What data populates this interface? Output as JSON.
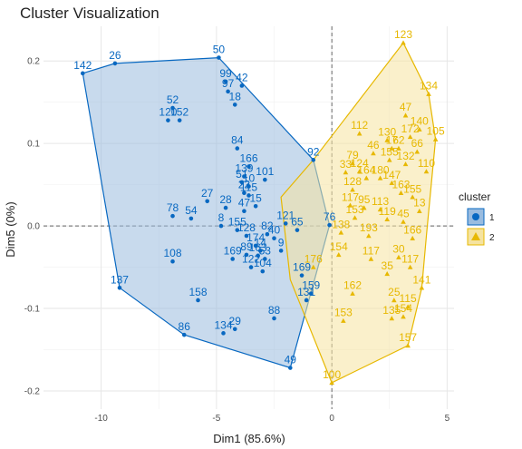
{
  "chart_data": {
    "type": "scatter",
    "title": "Cluster Visualization",
    "xlabel": "Dim1 (85.6%)",
    "ylabel": "Dim5 (0%)",
    "xlim": [
      -12.5,
      5.3
    ],
    "ylim": [
      -0.222,
      0.242
    ],
    "x_ticks": [
      -10,
      -5,
      0,
      5
    ],
    "y_ticks": [
      -0.2,
      -0.1,
      0.0,
      0.1,
      0.2
    ],
    "x_tick_labels": [
      "-10",
      "-5",
      "0",
      "5"
    ],
    "y_tick_labels": [
      "-0.2",
      "-0.1",
      "0.0",
      "0.1",
      "0.2"
    ],
    "grid": true,
    "legend_placement": "right",
    "legend": {
      "title": "cluster",
      "entries": [
        {
          "label": "1",
          "color": "#0868C1",
          "shape": "circle"
        },
        {
          "label": "2",
          "color": "#E7B800",
          "shape": "triangle"
        }
      ]
    },
    "series": [
      {
        "name": "1",
        "color": "#0868C1",
        "fill": "#9ABCDF",
        "shape": "circle",
        "hull": [
          [
            -10.8,
            0.185
          ],
          [
            -9.4,
            0.197
          ],
          [
            -4.9,
            0.204
          ],
          [
            -0.8,
            0.08
          ],
          [
            -0.1,
            0.001
          ],
          [
            -1.8,
            -0.172
          ],
          [
            -6.4,
            -0.132
          ],
          [
            -9.2,
            -0.075
          ]
        ],
        "points": [
          {
            "x": -10.8,
            "y": 0.185,
            "label": "142"
          },
          {
            "x": -9.4,
            "y": 0.197,
            "label": "26"
          },
          {
            "x": -4.9,
            "y": 0.204,
            "label": "50"
          },
          {
            "x": -6.9,
            "y": 0.143,
            "label": "52"
          },
          {
            "x": -6.6,
            "y": 0.128,
            "label": "152"
          },
          {
            "x": -7.1,
            "y": 0.128,
            "label": "120"
          },
          {
            "x": -4.6,
            "y": 0.175,
            "label": "99"
          },
          {
            "x": -3.9,
            "y": 0.17,
            "label": "42"
          },
          {
            "x": -4.5,
            "y": 0.163,
            "label": "97"
          },
          {
            "x": -4.2,
            "y": 0.147,
            "label": "18"
          },
          {
            "x": -4.1,
            "y": 0.094,
            "label": "84"
          },
          {
            "x": -0.8,
            "y": 0.08,
            "label": "92"
          },
          {
            "x": -3.6,
            "y": 0.072,
            "label": "166"
          },
          {
            "x": -3.8,
            "y": 0.06,
            "label": "139"
          },
          {
            "x": -2.9,
            "y": 0.056,
            "label": "101"
          },
          {
            "x": -3.9,
            "y": 0.053,
            "label": "51"
          },
          {
            "x": -3.6,
            "y": 0.048,
            "label": "10"
          },
          {
            "x": -3.8,
            "y": 0.04,
            "label": "22"
          },
          {
            "x": -3.6,
            "y": 0.037,
            "label": "115"
          },
          {
            "x": -5.4,
            "y": 0.03,
            "label": "27"
          },
          {
            "x": -4.6,
            "y": 0.022,
            "label": "28"
          },
          {
            "x": -3.3,
            "y": 0.024,
            "label": "15"
          },
          {
            "x": -3.8,
            "y": 0.018,
            "label": "47"
          },
          {
            "x": -6.1,
            "y": 0.009,
            "label": "54"
          },
          {
            "x": -6.9,
            "y": 0.012,
            "label": "78"
          },
          {
            "x": -4.8,
            "y": 0.0,
            "label": "8"
          },
          {
            "x": -4.1,
            "y": -0.005,
            "label": "155"
          },
          {
            "x": -3.7,
            "y": -0.012,
            "label": "128"
          },
          {
            "x": -2.8,
            "y": -0.01,
            "label": "82"
          },
          {
            "x": -2.5,
            "y": -0.015,
            "label": "40"
          },
          {
            "x": -1.5,
            "y": -0.005,
            "label": "65"
          },
          {
            "x": -3.3,
            "y": -0.024,
            "label": "174"
          },
          {
            "x": -3.1,
            "y": -0.03,
            "label": "14"
          },
          {
            "x": -2.2,
            "y": -0.03,
            "label": "9"
          },
          {
            "x": -4.3,
            "y": -0.04,
            "label": "169"
          },
          {
            "x": -3.7,
            "y": -0.035,
            "label": "89"
          },
          {
            "x": -3.2,
            "y": -0.036,
            "label": "163"
          },
          {
            "x": -2.9,
            "y": -0.04,
            "label": "53"
          },
          {
            "x": -3.5,
            "y": -0.05,
            "label": "122"
          },
          {
            "x": -3.0,
            "y": -0.055,
            "label": "104"
          },
          {
            "x": -6.9,
            "y": -0.043,
            "label": "108"
          },
          {
            "x": -9.2,
            "y": -0.075,
            "label": "137"
          },
          {
            "x": -5.8,
            "y": -0.09,
            "label": "158"
          },
          {
            "x": -6.4,
            "y": -0.132,
            "label": "86"
          },
          {
            "x": -4.7,
            "y": -0.13,
            "label": "134"
          },
          {
            "x": -4.2,
            "y": -0.125,
            "label": "29"
          },
          {
            "x": -2.5,
            "y": -0.112,
            "label": "88"
          },
          {
            "x": -1.8,
            "y": -0.172,
            "label": "49"
          },
          {
            "x": -1.3,
            "y": -0.06,
            "label": "169"
          },
          {
            "x": -1.1,
            "y": -0.09,
            "label": "131"
          },
          {
            "x": -0.1,
            "y": 0.001,
            "label": "76"
          },
          {
            "x": -0.9,
            "y": -0.082,
            "label": "159"
          },
          {
            "x": -2.0,
            "y": 0.003,
            "label": "121"
          }
        ]
      },
      {
        "name": "2",
        "color": "#E7B800",
        "fill": "#F5E3A1",
        "shape": "triangle",
        "hull": [
          [
            3.1,
            0.222
          ],
          [
            4.2,
            0.16
          ],
          [
            4.5,
            0.105
          ],
          [
            4.1,
            -0.012
          ],
          [
            3.9,
            -0.075
          ],
          [
            3.3,
            -0.145
          ],
          [
            0.0,
            -0.19
          ],
          [
            -1.8,
            -0.065
          ],
          [
            -2.2,
            0.035
          ],
          [
            -0.8,
            0.08
          ]
        ],
        "points": [
          {
            "x": 3.1,
            "y": 0.222,
            "label": "123"
          },
          {
            "x": 4.2,
            "y": 0.16,
            "label": "134"
          },
          {
            "x": 3.2,
            "y": 0.134,
            "label": "47"
          },
          {
            "x": 3.8,
            "y": 0.117,
            "label": "140"
          },
          {
            "x": 3.4,
            "y": 0.108,
            "label": "172"
          },
          {
            "x": 4.5,
            "y": 0.105,
            "label": "105"
          },
          {
            "x": 1.2,
            "y": 0.112,
            "label": "112"
          },
          {
            "x": 2.4,
            "y": 0.104,
            "label": "130"
          },
          {
            "x": 2.6,
            "y": 0.094,
            "label": "17"
          },
          {
            "x": 2.9,
            "y": 0.094,
            "label": "62"
          },
          {
            "x": 1.8,
            "y": 0.088,
            "label": "46"
          },
          {
            "x": 3.7,
            "y": 0.09,
            "label": "66"
          },
          {
            "x": 0.9,
            "y": 0.076,
            "label": "79"
          },
          {
            "x": 2.5,
            "y": 0.08,
            "label": "155"
          },
          {
            "x": 3.2,
            "y": 0.075,
            "label": "132"
          },
          {
            "x": 1.2,
            "y": 0.066,
            "label": "124"
          },
          {
            "x": 0.6,
            "y": 0.065,
            "label": "33"
          },
          {
            "x": 4.1,
            "y": 0.066,
            "label": "110"
          },
          {
            "x": 1.5,
            "y": 0.058,
            "label": "164"
          },
          {
            "x": 2.1,
            "y": 0.058,
            "label": "180"
          },
          {
            "x": 2.6,
            "y": 0.052,
            "label": "147"
          },
          {
            "x": 0.9,
            "y": 0.044,
            "label": "128"
          },
          {
            "x": 3.0,
            "y": 0.04,
            "label": "163"
          },
          {
            "x": 3.5,
            "y": 0.035,
            "label": "155"
          },
          {
            "x": 0.8,
            "y": 0.025,
            "label": "117"
          },
          {
            "x": 1.4,
            "y": 0.022,
            "label": "95"
          },
          {
            "x": 2.1,
            "y": 0.02,
            "label": "113"
          },
          {
            "x": 3.8,
            "y": 0.018,
            "label": "13"
          },
          {
            "x": 1.0,
            "y": 0.01,
            "label": "153"
          },
          {
            "x": 2.4,
            "y": 0.008,
            "label": "119"
          },
          {
            "x": 3.1,
            "y": 0.005,
            "label": "45"
          },
          {
            "x": 0.4,
            "y": -0.008,
            "label": "138"
          },
          {
            "x": 1.6,
            "y": -0.012,
            "label": "193"
          },
          {
            "x": 3.5,
            "y": -0.015,
            "label": "166"
          },
          {
            "x": 0.3,
            "y": -0.035,
            "label": "154"
          },
          {
            "x": 1.7,
            "y": -0.04,
            "label": "117"
          },
          {
            "x": 2.9,
            "y": -0.038,
            "label": "30"
          },
          {
            "x": 3.4,
            "y": -0.05,
            "label": "117"
          },
          {
            "x": -0.8,
            "y": -0.05,
            "label": "176"
          },
          {
            "x": 2.4,
            "y": -0.058,
            "label": "35"
          },
          {
            "x": 3.9,
            "y": -0.075,
            "label": "141"
          },
          {
            "x": 0.9,
            "y": -0.082,
            "label": "162"
          },
          {
            "x": 2.7,
            "y": -0.09,
            "label": "25"
          },
          {
            "x": 3.3,
            "y": -0.098,
            "label": "115"
          },
          {
            "x": 2.6,
            "y": -0.112,
            "label": "135"
          },
          {
            "x": 3.1,
            "y": -0.11,
            "label": "154"
          },
          {
            "x": 0.5,
            "y": -0.115,
            "label": "153"
          },
          {
            "x": 3.3,
            "y": -0.145,
            "label": "157"
          },
          {
            "x": 0.0,
            "y": -0.19,
            "label": "100"
          }
        ]
      }
    ]
  }
}
